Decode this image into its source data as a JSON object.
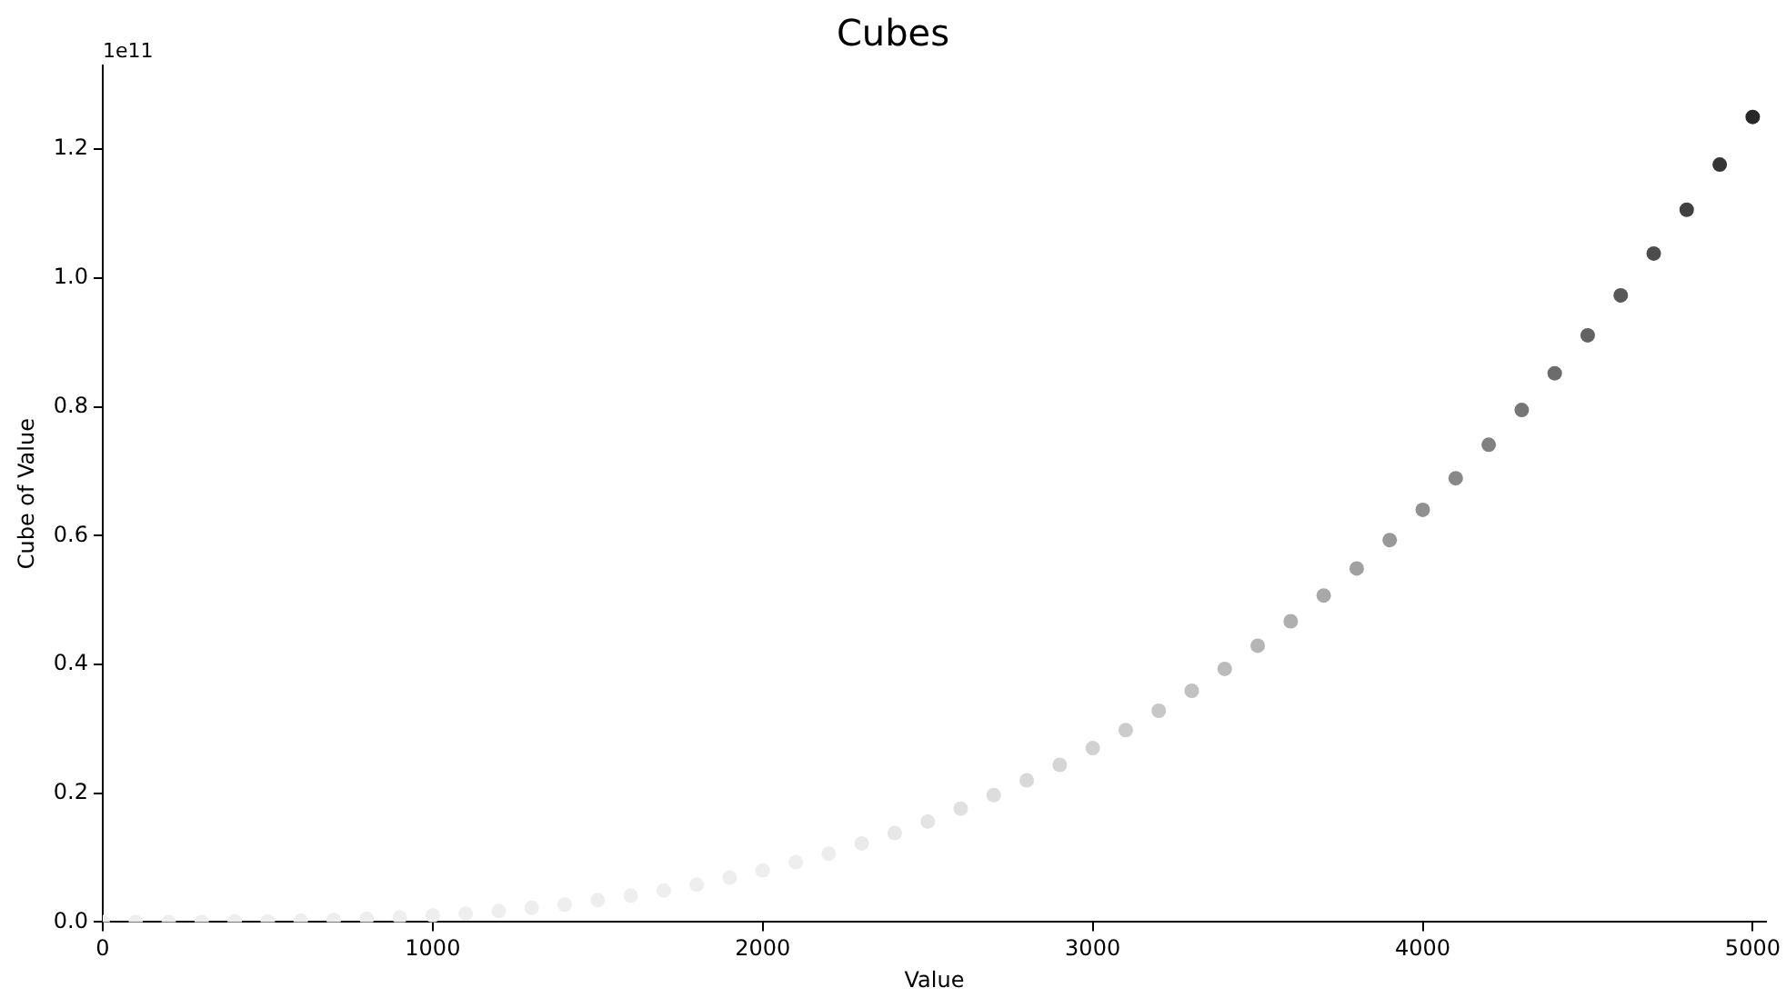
{
  "chart_data": {
    "type": "scatter",
    "title": "Cubes",
    "xlabel": "Value",
    "ylabel": "Cube of Value",
    "annotations": [
      "1e11"
    ],
    "x": [
      0,
      100,
      200,
      300,
      400,
      500,
      600,
      700,
      800,
      900,
      1000,
      1100,
      1200,
      1300,
      1400,
      1500,
      1600,
      1700,
      1800,
      1900,
      2000,
      2100,
      2200,
      2300,
      2400,
      2500,
      2600,
      2700,
      2800,
      2900,
      3000,
      3100,
      3200,
      3300,
      3400,
      3500,
      3600,
      3700,
      3800,
      3900,
      4000,
      4100,
      4200,
      4300,
      4400,
      4500,
      4600,
      4700,
      4800,
      4900,
      5000
    ],
    "values": [
      0,
      0,
      0,
      0,
      0.001,
      0.001,
      0.002,
      0.003,
      0.005,
      0.007,
      0.01,
      0.013,
      0.017,
      0.022,
      0.027,
      0.034,
      0.041,
      0.049,
      0.058,
      0.069,
      0.08,
      0.093,
      0.106,
      0.122,
      0.138,
      0.156,
      0.176,
      0.197,
      0.22,
      0.244,
      0.27,
      0.298,
      0.328,
      0.359,
      0.393,
      0.429,
      0.467,
      0.507,
      0.549,
      0.593,
      0.64,
      0.689,
      0.741,
      0.795,
      0.852,
      0.911,
      0.973,
      1.038,
      1.106,
      1.176,
      1.25
    ],
    "colors": [
      "#eeeeee",
      "#eeeeee",
      "#eeeeee",
      "#eeeeee",
      "#eeeeee",
      "#eeeeee",
      "#eeeeee",
      "#eeeeee",
      "#eeeeee",
      "#eeeeee",
      "#eeeeee",
      "#eeeeee",
      "#eeeeee",
      "#eeeeee",
      "#eeeeee",
      "#eeeeee",
      "#eeeeee",
      "#eeeeee",
      "#eeeeee",
      "#eeeeee",
      "#eeeeee",
      "#eeeeee",
      "#ededed",
      "#eaeaea",
      "#e7e7e7",
      "#e4e4e4",
      "#e1e1e1",
      "#dddddd",
      "#d9d9d9",
      "#d5d5d5",
      "#d1d1d1",
      "#cccccc",
      "#c7c7c7",
      "#c1c1c1",
      "#bbbbbb",
      "#b5b5b5",
      "#afafaf",
      "#a8a8a8",
      "#a1a1a1",
      "#999999",
      "#919191",
      "#888888",
      "#808080",
      "#767676",
      "#6c6c6c",
      "#626262",
      "#585858",
      "#4c4c4c",
      "#414141",
      "#353535",
      "#282828"
    ],
    "xlim": [
      0,
      5040
    ],
    "xticks": [
      0,
      1000,
      2000,
      3000,
      4000,
      5000
    ],
    "ylim": [
      0,
      1.33
    ],
    "yticks": [
      {
        "value": 0,
        "label": "0.0"
      },
      0.2,
      0.4,
      0.6,
      0.8,
      {
        "value": 1,
        "label": "1.0"
      },
      1.2
    ],
    "marker": "circle",
    "grid": false,
    "legend": false
  }
}
